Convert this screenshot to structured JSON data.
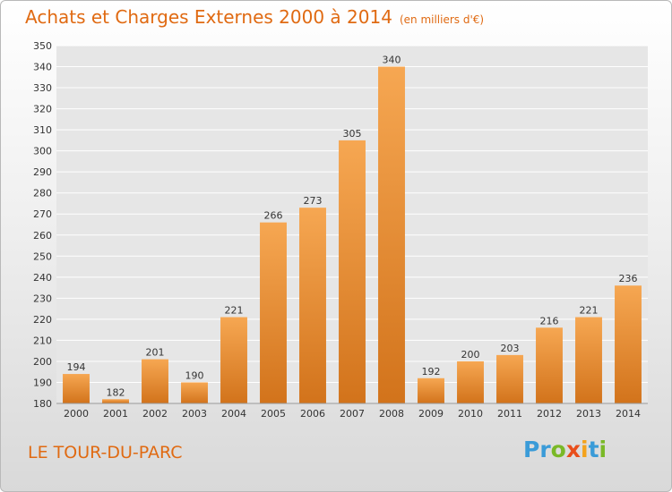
{
  "title": "Achats et Charges Externes 2000 à 2014",
  "unit": "(en milliers d'€)",
  "location": "LE TOUR-DU-PARC",
  "logo": {
    "letters": [
      "P",
      "r",
      "o",
      "x",
      "i",
      "t",
      "i"
    ],
    "colors": [
      "#3a9bd8",
      "#3a9bd8",
      "#7ab927",
      "#e94e1b",
      "#f4a21b",
      "#3a9bd8",
      "#7ab927"
    ]
  },
  "colors": {
    "bar_light": "#f6a752",
    "bar_dark": "#d2731b",
    "title": "#e06a12"
  },
  "chart_data": {
    "type": "bar",
    "categories": [
      "2000",
      "2001",
      "2002",
      "2003",
      "2004",
      "2005",
      "2006",
      "2007",
      "2008",
      "2009",
      "2010",
      "2011",
      "2012",
      "2013",
      "2014"
    ],
    "values": [
      194,
      182,
      201,
      190,
      221,
      266,
      273,
      305,
      340,
      192,
      200,
      203,
      216,
      221,
      236
    ],
    "ylim": [
      180,
      350
    ],
    "yticks": [
      180,
      190,
      200,
      210,
      220,
      230,
      240,
      250,
      260,
      270,
      280,
      290,
      300,
      310,
      320,
      330,
      340,
      350
    ],
    "grid": true,
    "xlabel": "",
    "ylabel": ""
  }
}
